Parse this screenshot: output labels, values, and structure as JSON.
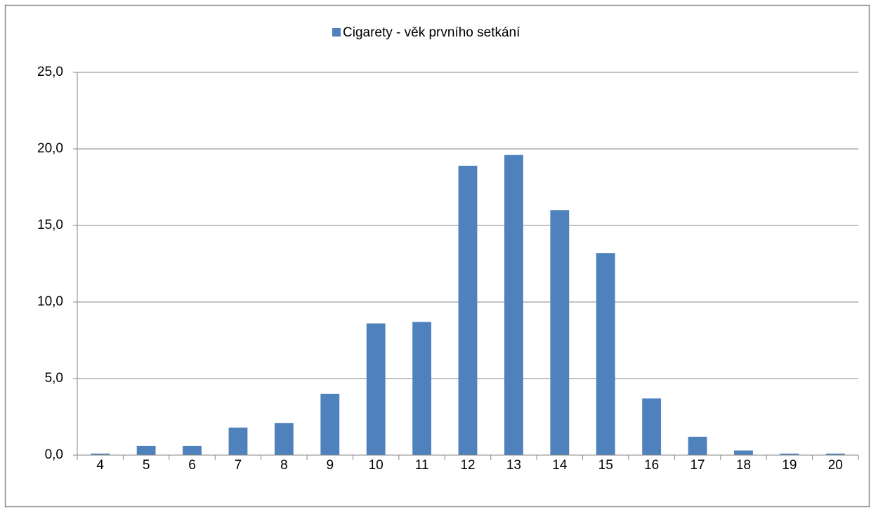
{
  "chart_data": {
    "type": "bar",
    "categories": [
      "4",
      "5",
      "6",
      "7",
      "8",
      "9",
      "10",
      "11",
      "12",
      "13",
      "14",
      "15",
      "16",
      "17",
      "18",
      "19",
      "20"
    ],
    "series": [
      {
        "name": "Cigarety - věk prvního setkání",
        "color": "#4f81bd",
        "values": [
          0.1,
          0.6,
          0.6,
          1.8,
          2.1,
          4.0,
          8.6,
          8.7,
          18.9,
          19.6,
          16.0,
          13.2,
          3.7,
          1.2,
          0.3,
          0.1,
          0.1
        ]
      }
    ],
    "ylim": [
      0,
      25
    ],
    "yticks": [
      {
        "value": 0,
        "label": "0,0"
      },
      {
        "value": 5,
        "label": "5,0"
      },
      {
        "value": 10,
        "label": "10,0"
      },
      {
        "value": 15,
        "label": "15,0"
      },
      {
        "value": 20,
        "label": "20,0"
      },
      {
        "value": 25,
        "label": "25,0"
      }
    ],
    "grid": true,
    "legend": "top"
  }
}
